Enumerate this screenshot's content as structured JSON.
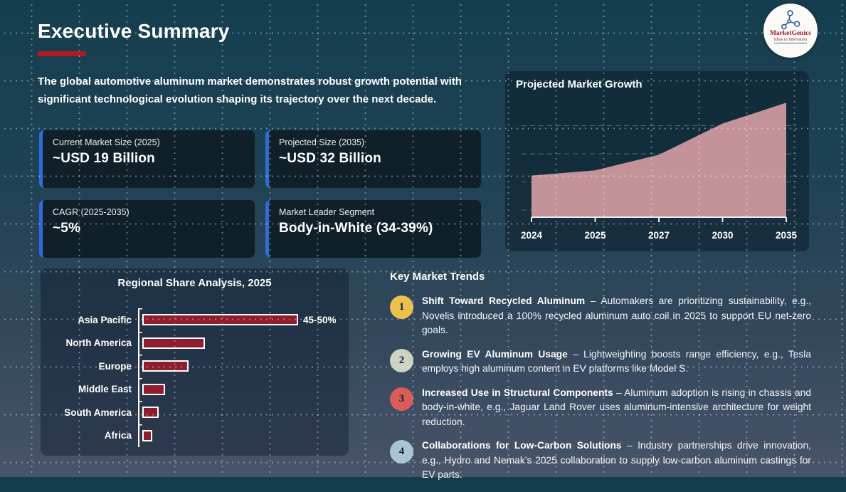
{
  "page": {
    "title": "Executive Summary",
    "intro": "The global automotive aluminum market demonstrates robust growth potential with significant technological evolution shaping its trajectory over the next decade."
  },
  "logo": {
    "brand": "MarketGenics",
    "tagline": "Ideas to Innovation"
  },
  "accent_colors": {
    "title_underline": "#b11a20",
    "card_border": "#2e6cd8"
  },
  "stats": [
    {
      "label": "Current Market Size (2025)",
      "value": "~USD 19 Billion"
    },
    {
      "label": "Projected Size (2035)",
      "value": "~USD 32 Billion"
    },
    {
      "label": "CAGR (2025-2035)",
      "value": "~5%"
    },
    {
      "label": "Market Leader Segment",
      "value": "Body-in-White (34-39%)"
    }
  ],
  "chart_data": [
    {
      "type": "area",
      "title": "Projected Market Growth",
      "x": [
        "2024",
        "2025",
        "2027",
        "2030",
        "2035"
      ],
      "values": [
        18,
        19,
        22,
        28,
        32
      ],
      "unit": "USD Billion (approx., implied by stat cards)",
      "ylim": [
        10,
        33
      ],
      "fill_color": "#c49399",
      "grid": "horizontal-dashed",
      "legend": "none"
    },
    {
      "type": "bar",
      "title": "Regional Share Analysis, 2025",
      "orientation": "horizontal",
      "categories": [
        "Asia Pacific",
        "North America",
        "Europe",
        "Middle East",
        "South America",
        "Africa"
      ],
      "values": [
        47.5,
        19,
        14,
        7,
        5,
        3
      ],
      "value_labels": [
        "45-50%",
        "",
        "",
        "",
        "",
        ""
      ],
      "xlabel": "",
      "ylabel": "",
      "xlim": [
        0,
        52
      ],
      "bar_color": "#8e1e2d",
      "legend": "none"
    }
  ],
  "trends": {
    "heading": "Key Market Trends",
    "items": [
      {
        "num": "1",
        "color": "#edc04d",
        "title": "Shift Toward Recycled Aluminum",
        "body": "– Automakers are prioritizing sustainability, e.g., Novelis introduced a 100% recycled aluminum auto coil in 2025 to support EU net-zero goals."
      },
      {
        "num": "2",
        "color": "#cdd3c3",
        "title": "Growing EV Aluminum Usage",
        "body": "– Lightweighting boosts range efficiency, e.g., Tesla employs high aluminum content in EV platforms like Model S."
      },
      {
        "num": "3",
        "color": "#d95d58",
        "title": "Increased Use in Structural Components",
        "body": "– Aluminum adoption is rising in chassis and body-in-white, e.g., Jaguar Land Rover uses aluminum-intensive architecture for weight reduction."
      },
      {
        "num": "4",
        "color": "#a9c4d8",
        "title": "Collaborations for Low-Carbon Solutions",
        "body": "– Industry partnerships drive innovation, e.g., Hydro and Nemak’s 2025 collaboration to supply low-carbon aluminum castings for EV parts."
      }
    ]
  }
}
